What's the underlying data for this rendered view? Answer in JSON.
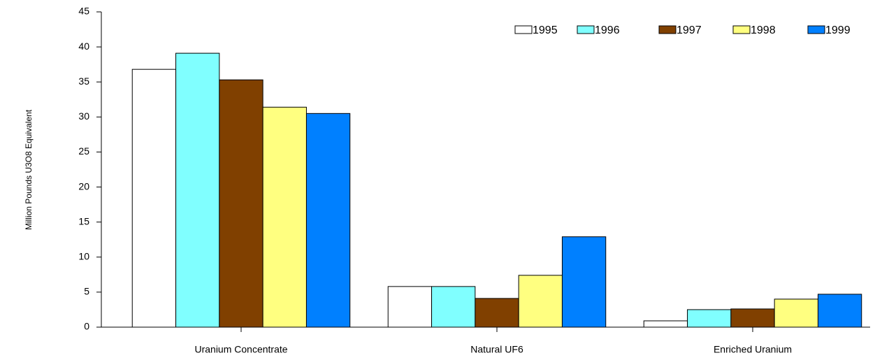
{
  "chart_data": {
    "type": "bar",
    "y_label": "Million Pounds U3O8 Equivalent",
    "categories": [
      "Uranium Concentrate",
      "Natural UF6",
      "Enriched Uranium"
    ],
    "series": [
      {
        "name": "1995",
        "color": "#ffffff",
        "values": [
          36.8,
          5.8,
          0.9
        ]
      },
      {
        "name": "1996",
        "color": "#80ffff",
        "values": [
          39.1,
          5.8,
          2.5
        ]
      },
      {
        "name": "1997",
        "color": "#804000",
        "values": [
          35.3,
          4.1,
          2.6
        ]
      },
      {
        "name": "1998",
        "color": "#ffff80",
        "values": [
          31.4,
          7.4,
          4.0
        ]
      },
      {
        "name": "1999",
        "color": "#0080ff",
        "values": [
          30.5,
          12.9,
          4.7
        ]
      }
    ],
    "ylim": [
      0,
      45
    ],
    "yticks": [
      0,
      5,
      10,
      15,
      20,
      25,
      30,
      35,
      40,
      45
    ],
    "grid": false,
    "legend": "top-right"
  }
}
